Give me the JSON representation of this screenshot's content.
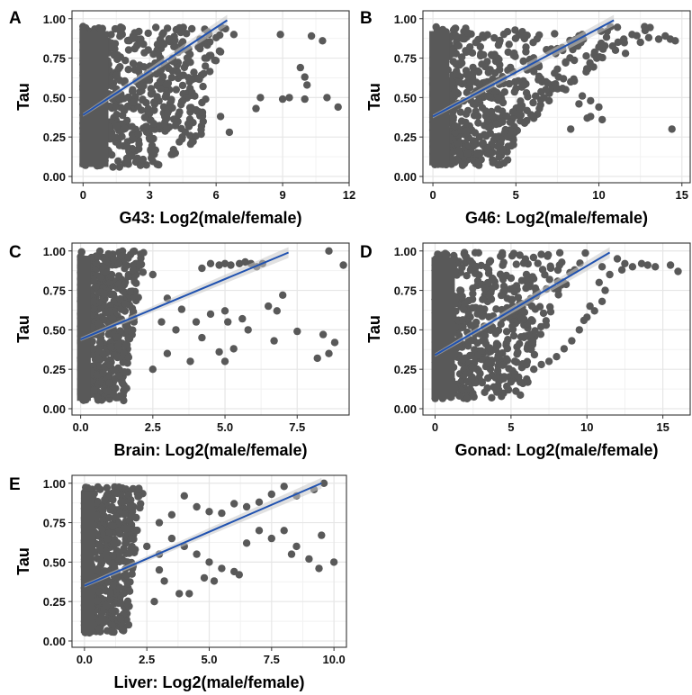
{
  "figure": {
    "point_color": "#595959",
    "line_color": "#2052b0",
    "band_color": "#c9c9c9",
    "grid_major_color": "#e6e6e6",
    "grid_minor_color": "#f2f2f2",
    "axis_color": "#333333"
  },
  "chart_data": [
    {
      "panel": "A",
      "type": "scatter",
      "xlabel": "G43: Log2(male/female)",
      "ylabel": "Tau",
      "xlim": [
        -0.5,
        12
      ],
      "ylim": [
        -0.04,
        1.05
      ],
      "xticks": [
        0,
        3,
        6,
        9,
        12
      ],
      "xtick_labels": [
        "0",
        "3",
        "6",
        "9",
        "12"
      ],
      "yticks": [
        0,
        0.25,
        0.5,
        0.75,
        1.0
      ],
      "ytick_labels": [
        "0.00",
        "0.25",
        "0.50",
        "0.75",
        "1.00"
      ],
      "trend_line": {
        "x": [
          0,
          6.5
        ],
        "y": [
          0.39,
          0.99
        ]
      },
      "dense_region": {
        "max_x": 5.2,
        "max_x_at_top": 6.6,
        "y_min": 0.06,
        "y_max": 0.95
      },
      "points": [
        [
          6.0,
          0.88
        ],
        [
          6.8,
          0.9
        ],
        [
          5.2,
          0.82
        ],
        [
          6.2,
          0.79
        ],
        [
          5.5,
          0.75
        ],
        [
          4.8,
          0.6
        ],
        [
          5.0,
          0.66
        ],
        [
          4.2,
          0.55
        ],
        [
          5.2,
          0.62
        ],
        [
          3.2,
          0.47
        ],
        [
          4.5,
          0.48
        ],
        [
          3.0,
          0.4
        ],
        [
          2.5,
          0.27
        ],
        [
          2.2,
          0.13
        ],
        [
          3.8,
          0.4
        ],
        [
          6.2,
          0.38
        ],
        [
          6.6,
          0.28
        ],
        [
          8.9,
          0.9
        ],
        [
          10.3,
          0.89
        ],
        [
          10.8,
          0.86
        ],
        [
          9.8,
          0.69
        ],
        [
          10.0,
          0.63
        ],
        [
          10.1,
          0.58
        ],
        [
          8.0,
          0.5
        ],
        [
          9.0,
          0.49
        ],
        [
          9.3,
          0.5
        ],
        [
          10.0,
          0.49
        ],
        [
          11.0,
          0.5
        ],
        [
          11.5,
          0.44
        ],
        [
          7.8,
          0.43
        ]
      ]
    },
    {
      "panel": "B",
      "type": "scatter",
      "xlabel": "G46: Log2(male/female)",
      "ylabel": "Tau",
      "xlim": [
        -0.6,
        15.5
      ],
      "ylim": [
        -0.04,
        1.05
      ],
      "xticks": [
        0,
        5,
        10,
        15
      ],
      "xtick_labels": [
        "0",
        "5",
        "10",
        "15"
      ],
      "yticks": [
        0,
        0.25,
        0.5,
        0.75,
        1.0
      ],
      "ytick_labels": [
        "0.00",
        "0.25",
        "0.50",
        "0.75",
        "1.00"
      ],
      "trend_line": {
        "x": [
          0,
          10.9
        ],
        "y": [
          0.38,
          0.99
        ]
      },
      "dense_region": {
        "max_x": 4.5,
        "max_x_at_top": 13.5,
        "y_min": 0.07,
        "y_max": 0.95
      },
      "points": [
        [
          12.5,
          0.85
        ],
        [
          13.0,
          0.88
        ],
        [
          13.6,
          0.87
        ],
        [
          14.0,
          0.89
        ],
        [
          14.3,
          0.87
        ],
        [
          14.6,
          0.86
        ],
        [
          12.0,
          0.9
        ],
        [
          11.5,
          0.87
        ],
        [
          10.5,
          0.92
        ],
        [
          9.0,
          0.9
        ],
        [
          8.5,
          0.86
        ],
        [
          7.5,
          0.81
        ],
        [
          8.0,
          0.72
        ],
        [
          7.5,
          0.68
        ],
        [
          8.3,
          0.6
        ],
        [
          8.0,
          0.55
        ],
        [
          9.0,
          0.51
        ],
        [
          9.5,
          0.48
        ],
        [
          8.8,
          0.46
        ],
        [
          10.0,
          0.44
        ],
        [
          9.5,
          0.38
        ],
        [
          9.3,
          0.37
        ],
        [
          8.3,
          0.3
        ],
        [
          10.2,
          0.36
        ],
        [
          6.5,
          0.62
        ],
        [
          6.8,
          0.55
        ],
        [
          7.0,
          0.48
        ],
        [
          14.4,
          0.3
        ],
        [
          11.0,
          0.8
        ],
        [
          11.6,
          0.78
        ],
        [
          6.0,
          0.7
        ],
        [
          5.5,
          0.58
        ],
        [
          10.0,
          0.82
        ]
      ]
    },
    {
      "panel": "C",
      "type": "scatter",
      "xlabel": "Brain: Log2(male/female)",
      "ylabel": "Tau",
      "xlim": [
        -0.3,
        9.3
      ],
      "ylim": [
        -0.04,
        1.05
      ],
      "xticks": [
        0,
        2.5,
        5,
        7.5
      ],
      "xtick_labels": [
        "0.0",
        "2.5",
        "5.0",
        "7.5"
      ],
      "yticks": [
        0,
        0.25,
        0.5,
        0.75,
        1.0
      ],
      "ytick_labels": [
        "0.00",
        "0.25",
        "0.50",
        "0.75",
        "1.00"
      ],
      "trend_line": {
        "x": [
          0,
          7.2
        ],
        "y": [
          0.44,
          0.99
        ]
      },
      "dense_region": {
        "max_x": 1.6,
        "max_x_at_top": 2.4,
        "y_min": 0.05,
        "y_max": 1.0
      },
      "points": [
        [
          4.5,
          0.92
        ],
        [
          4.8,
          0.91
        ],
        [
          5.0,
          0.92
        ],
        [
          5.2,
          0.91
        ],
        [
          5.5,
          0.92
        ],
        [
          5.7,
          0.93
        ],
        [
          5.9,
          0.92
        ],
        [
          6.1,
          0.9
        ],
        [
          6.3,
          0.92
        ],
        [
          4.2,
          0.89
        ],
        [
          8.6,
          1.0
        ],
        [
          9.1,
          0.91
        ],
        [
          2.5,
          0.85
        ],
        [
          3.0,
          0.7
        ],
        [
          3.5,
          0.63
        ],
        [
          2.8,
          0.55
        ],
        [
          3.3,
          0.5
        ],
        [
          4.0,
          0.55
        ],
        [
          4.5,
          0.6
        ],
        [
          5.0,
          0.62
        ],
        [
          5.1,
          0.55
        ],
        [
          4.8,
          0.36
        ],
        [
          5.0,
          0.3
        ],
        [
          5.3,
          0.38
        ],
        [
          6.5,
          0.65
        ],
        [
          7.0,
          0.72
        ],
        [
          6.8,
          0.62
        ],
        [
          7.5,
          0.49
        ],
        [
          8.4,
          0.47
        ],
        [
          8.8,
          0.42
        ],
        [
          8.2,
          0.32
        ],
        [
          8.6,
          0.35
        ],
        [
          6.7,
          0.43
        ],
        [
          5.6,
          0.57
        ],
        [
          5.8,
          0.5
        ],
        [
          3.0,
          0.35
        ],
        [
          2.5,
          0.25
        ],
        [
          4.2,
          0.45
        ],
        [
          3.8,
          0.3
        ]
      ]
    },
    {
      "panel": "D",
      "type": "scatter",
      "xlabel": "Gonad: Log2(male/female)",
      "ylabel": "Tau",
      "xlim": [
        -0.8,
        16.8
      ],
      "ylim": [
        -0.04,
        1.05
      ],
      "xticks": [
        0,
        5,
        10,
        15
      ],
      "xtick_labels": [
        "0",
        "5",
        "10",
        "15"
      ],
      "yticks": [
        0,
        0.25,
        0.5,
        0.75,
        1.0
      ],
      "ytick_labels": [
        "0.00",
        "0.25",
        "0.50",
        "0.75",
        "1.00"
      ],
      "trend_line": {
        "x": [
          0,
          11.5
        ],
        "y": [
          0.34,
          0.99
        ]
      },
      "dense_region": {
        "max_x": 6.0,
        "max_x_at_top": 10.0,
        "y_min": 0.06,
        "y_max": 0.99
      },
      "points": [
        [
          12.0,
          0.95
        ],
        [
          12.5,
          0.92
        ],
        [
          13.0,
          0.9
        ],
        [
          13.6,
          0.92
        ],
        [
          14.0,
          0.91
        ],
        [
          14.5,
          0.9
        ],
        [
          15.5,
          0.91
        ],
        [
          16.0,
          0.87
        ],
        [
          11.0,
          0.9
        ],
        [
          11.5,
          0.85
        ],
        [
          10.8,
          0.8
        ],
        [
          11.2,
          0.75
        ],
        [
          11.0,
          0.68
        ],
        [
          10.5,
          0.62
        ],
        [
          10.0,
          0.58
        ],
        [
          9.5,
          0.5
        ],
        [
          9.0,
          0.43
        ],
        [
          8.5,
          0.38
        ],
        [
          8.0,
          0.33
        ],
        [
          7.0,
          0.28
        ],
        [
          6.5,
          0.25
        ],
        [
          5.5,
          0.2
        ],
        [
          4.0,
          0.13
        ],
        [
          5.0,
          0.17
        ],
        [
          9.8,
          0.56
        ],
        [
          10.2,
          0.65
        ],
        [
          12.3,
          0.88
        ],
        [
          7.5,
          0.3
        ]
      ]
    },
    {
      "panel": "E",
      "type": "scatter",
      "xlabel": "Liver: Log2(male/female)",
      "ylabel": "Tau",
      "xlim": [
        -0.5,
        10.5
      ],
      "ylim": [
        -0.04,
        1.05
      ],
      "xticks": [
        0,
        2.5,
        5,
        7.5,
        10
      ],
      "xtick_labels": [
        "0.0",
        "2.5",
        "5.0",
        "7.5",
        "10.0"
      ],
      "yticks": [
        0,
        0.25,
        0.5,
        0.75,
        1.0
      ],
      "ytick_labels": [
        "0.00",
        "0.25",
        "0.50",
        "0.75",
        "1.00"
      ],
      "trend_line": {
        "x": [
          0,
          9.5
        ],
        "y": [
          0.35,
          1.0
        ]
      },
      "dense_region": {
        "max_x": 1.8,
        "max_x_at_top": 2.4,
        "y_min": 0.05,
        "y_max": 0.98
      },
      "points": [
        [
          9.6,
          1.0
        ],
        [
          9.2,
          0.96
        ],
        [
          8.5,
          0.92
        ],
        [
          8.0,
          0.98
        ],
        [
          7.5,
          0.93
        ],
        [
          7.0,
          0.88
        ],
        [
          6.5,
          0.85
        ],
        [
          6.0,
          0.87
        ],
        [
          5.5,
          0.81
        ],
        [
          5.0,
          0.82
        ],
        [
          4.5,
          0.85
        ],
        [
          4.0,
          0.92
        ],
        [
          3.5,
          0.8
        ],
        [
          3.0,
          0.75
        ],
        [
          3.5,
          0.65
        ],
        [
          4.0,
          0.6
        ],
        [
          4.5,
          0.55
        ],
        [
          5.0,
          0.5
        ],
        [
          5.5,
          0.46
        ],
        [
          6.0,
          0.44
        ],
        [
          6.2,
          0.42
        ],
        [
          7.0,
          0.7
        ],
        [
          7.5,
          0.65
        ],
        [
          8.0,
          0.7
        ],
        [
          8.5,
          0.6
        ],
        [
          9.0,
          0.52
        ],
        [
          9.5,
          0.67
        ],
        [
          9.4,
          0.46
        ],
        [
          10.0,
          0.5
        ],
        [
          3.0,
          0.45
        ],
        [
          3.2,
          0.38
        ],
        [
          3.8,
          0.3
        ],
        [
          4.2,
          0.3
        ],
        [
          2.8,
          0.25
        ],
        [
          4.8,
          0.4
        ],
        [
          5.2,
          0.38
        ],
        [
          2.5,
          0.6
        ],
        [
          3.0,
          0.55
        ],
        [
          6.5,
          0.62
        ],
        [
          8.3,
          0.55
        ]
      ]
    }
  ]
}
